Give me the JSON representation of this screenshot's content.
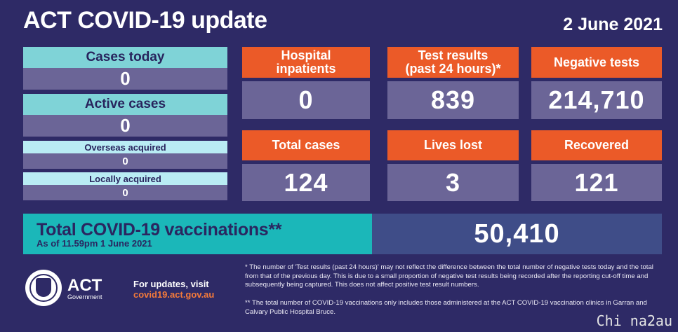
{
  "header": {
    "title": "ACT COVID-19 update",
    "date": "2 June 2021"
  },
  "left_panel": {
    "cases_today": {
      "label": "Cases today",
      "value": "0"
    },
    "active_cases": {
      "label": "Active cases",
      "value": "0"
    },
    "overseas_acquired": {
      "label": "Overseas acquired",
      "value": "0"
    },
    "locally_acquired": {
      "label": "Locally acquired",
      "value": "0"
    }
  },
  "stats": {
    "hospital": {
      "label_line1": "Hospital",
      "label_line2": "inpatients",
      "value": "0"
    },
    "tests": {
      "label_line1": "Test results",
      "label_line2": "(past 24 hours)*",
      "value": "839"
    },
    "negative": {
      "label": "Negative tests",
      "value": "214,710"
    },
    "total_cases": {
      "label": "Total cases",
      "value": "124"
    },
    "lives_lost": {
      "label": "Lives lost",
      "value": "3"
    },
    "recovered": {
      "label": "Recovered",
      "value": "121"
    }
  },
  "vaccinations": {
    "title": "Total COVID-19 vaccinations**",
    "subtitle": "As of 11.59pm 1 June 2021",
    "value": "50,410"
  },
  "footer": {
    "logo_text": "ACT",
    "logo_sub": "Government",
    "updates_label": "For updates, visit",
    "url": "covid19.act.gov.au",
    "note1": "* The number of 'Test results (past 24 hours)' may not reflect the difference between the total number of negative tests today and the total from that of the previous day. This is due to a small proportion of negative test results being recorded after the reporting cut-off time and subsequently being captured. This does not affect positive test result numbers.",
    "note2": "** The total number of COVID-19 vaccinations only includes those administered at the ACT COVID-19 vaccination clinics in Garran and Calvary Public Hospital Bruce.",
    "watermark": "Chi na2au"
  },
  "colors": {
    "background": "#2e2a66",
    "orange": "#eb5a28",
    "cyan": "#7fd3d7",
    "teal": "#1bb7b9",
    "purple": "#6b6597"
  }
}
